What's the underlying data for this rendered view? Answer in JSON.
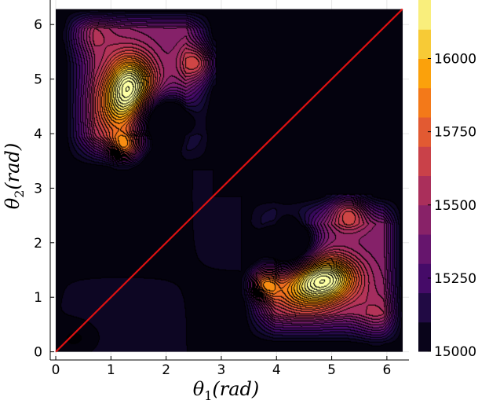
{
  "chart_data": {
    "type": "heatmap",
    "subtype": "filled-contour",
    "title": "",
    "xlabel": "θ1(rad)",
    "ylabel": "θ2(rad)",
    "xlabel_parts": {
      "symbol": "θ",
      "sub": "1",
      "unit": "(rad)"
    },
    "ylabel_parts": {
      "symbol": "θ",
      "sub": "2",
      "unit": "(rad)"
    },
    "xlim": [
      -0.1,
      6.4
    ],
    "ylim": [
      -0.15,
      6.45
    ],
    "domain": [
      0,
      6.283
    ],
    "x_ticks": [
      0,
      1,
      2,
      3,
      4,
      5,
      6
    ],
    "y_ticks": [
      0,
      1,
      2,
      3,
      4,
      5,
      6
    ],
    "colorbar": {
      "min": 15000,
      "max": 16200,
      "ticks": [
        15000,
        15250,
        15500,
        15750,
        16000
      ],
      "tick_labels": [
        "15000",
        "15250",
        "15500",
        "15750",
        "16000"
      ],
      "colormap": "inferno"
    },
    "diagonal_line": {
      "from": [
        0,
        0
      ],
      "to": [
        6.283,
        6.283
      ],
      "color": "#dd1111"
    },
    "features": [
      {
        "name": "upper-left-lobe",
        "center": [
          1.35,
          4.9
        ],
        "peak": 16150
      },
      {
        "name": "upper-left-secondary",
        "center": [
          1.25,
          3.8
        ],
        "peak": 15900
      },
      {
        "name": "upper-left-right-peak",
        "center": [
          2.6,
          5.35
        ],
        "peak": 15700
      },
      {
        "name": "lower-right-lobe",
        "center": [
          4.9,
          1.4
        ],
        "peak": 16150
      },
      {
        "name": "lower-right-secondary",
        "center": [
          5.0,
          2.6
        ],
        "peak": 15700
      },
      {
        "name": "upper-left-hole",
        "center": [
          2.0,
          4.2
        ],
        "value": 15050
      },
      {
        "name": "lower-right-hole",
        "center": [
          4.05,
          2.05
        ],
        "value": 15050
      }
    ],
    "masked_region": "upper-right quadrant (θ1 > 2.85, θ2 > 2.85) is near minimum 15000"
  }
}
